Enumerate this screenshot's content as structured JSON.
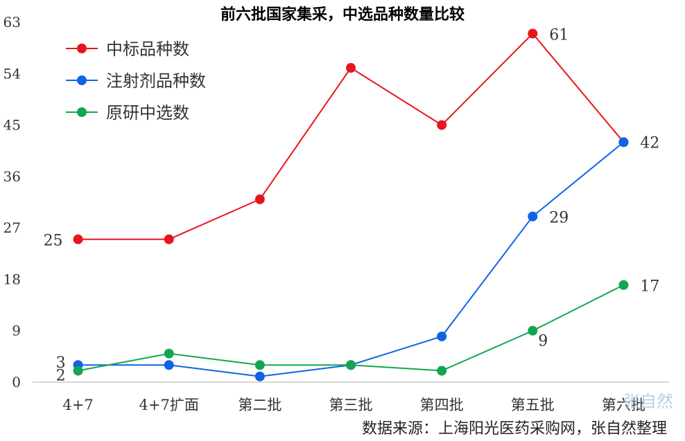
{
  "chart_data": {
    "type": "line",
    "title": "前六批国家集采，中选品种数量比较",
    "categories": [
      "4+7",
      "4+7扩面",
      "第二批",
      "第三批",
      "第四批",
      "第五批",
      "第六批"
    ],
    "ylim": [
      0,
      63
    ],
    "yticks": [
      0,
      9,
      18,
      27,
      36,
      45,
      54,
      63
    ],
    "grid": false,
    "legend_position": "top-left",
    "series": [
      {
        "name": "中标品种数",
        "color": "#e8141b",
        "values": [
          25,
          25,
          32,
          55,
          45,
          61,
          42
        ]
      },
      {
        "name": "注射剂品种数",
        "color": "#0f63e6",
        "values": [
          3,
          3,
          1,
          3,
          8,
          29,
          42
        ]
      },
      {
        "name": "原研中选数",
        "color": "#12a650",
        "values": [
          2,
          5,
          3,
          3,
          2,
          9,
          17
        ]
      }
    ],
    "data_labels": [
      {
        "series": 0,
        "index": 0,
        "text": "25"
      },
      {
        "series": 0,
        "index": 5,
        "text": "61"
      },
      {
        "series": 1,
        "index": 0,
        "text": "3"
      },
      {
        "series": 1,
        "index": 5,
        "text": "29"
      },
      {
        "series": 1,
        "index": 6,
        "text": "42"
      },
      {
        "series": 2,
        "index": 0,
        "text": "2"
      },
      {
        "series": 2,
        "index": 5,
        "text": "9"
      },
      {
        "series": 2,
        "index": 6,
        "text": "17"
      }
    ],
    "source": "数据来源：上海阳光医药采购网，张自然整理",
    "watermark": "张自然"
  }
}
